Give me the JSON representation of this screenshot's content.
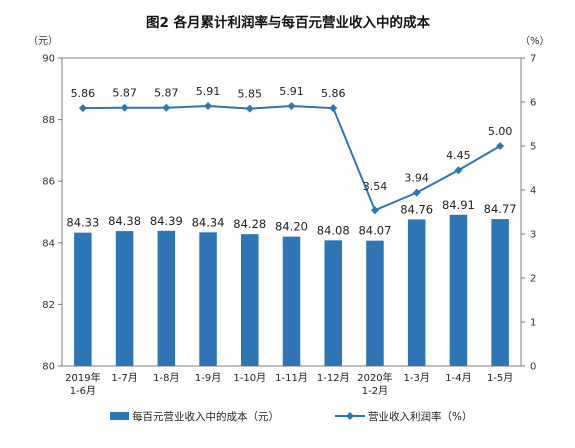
{
  "chart_data": {
    "type": "bar+line",
    "title": "图2  各月累计利润率与每百元营业收入中的成本",
    "left_axis": {
      "unit": "（元）",
      "ylim": [
        80,
        90
      ],
      "ticks": [
        80,
        82,
        84,
        86,
        88,
        90
      ]
    },
    "right_axis": {
      "unit": "（%）",
      "ylim": [
        0,
        7
      ],
      "ticks": [
        0,
        1,
        2,
        3,
        4,
        5,
        6,
        7
      ]
    },
    "categories": [
      [
        "2019年",
        "1-6月"
      ],
      [
        "1-7月"
      ],
      [
        "1-8月"
      ],
      [
        "1-9月"
      ],
      [
        "1-10月"
      ],
      [
        "1-11月"
      ],
      [
        "1-12月"
      ],
      [
        "2020年",
        "1-2月"
      ],
      [
        "1-3月"
      ],
      [
        "1-4月"
      ],
      [
        "1-5月"
      ]
    ],
    "series": [
      {
        "name": "每百元营业收入中的成本（元）",
        "type": "bar",
        "axis": "left",
        "color": "#2e75b6",
        "values": [
          84.33,
          84.38,
          84.39,
          84.34,
          84.28,
          84.2,
          84.08,
          84.07,
          84.76,
          84.91,
          84.77
        ],
        "labels": [
          "84.33",
          "84.38",
          "84.39",
          "84.34",
          "84.28",
          "84.20",
          "84.08",
          "84.07",
          "84.76",
          "84.91",
          "84.77"
        ]
      },
      {
        "name": "营业收入利润率（%）",
        "type": "line",
        "axis": "right",
        "color": "#2e75b6",
        "marker": "diamond",
        "values": [
          5.86,
          5.87,
          5.87,
          5.91,
          5.85,
          5.91,
          5.86,
          3.54,
          3.94,
          4.45,
          5.0
        ],
        "labels": [
          "5.86",
          "5.87",
          "5.87",
          "5.91",
          "5.85",
          "5.91",
          "5.86",
          "3.54",
          "3.94",
          "4.45",
          "5.00"
        ]
      }
    ]
  }
}
